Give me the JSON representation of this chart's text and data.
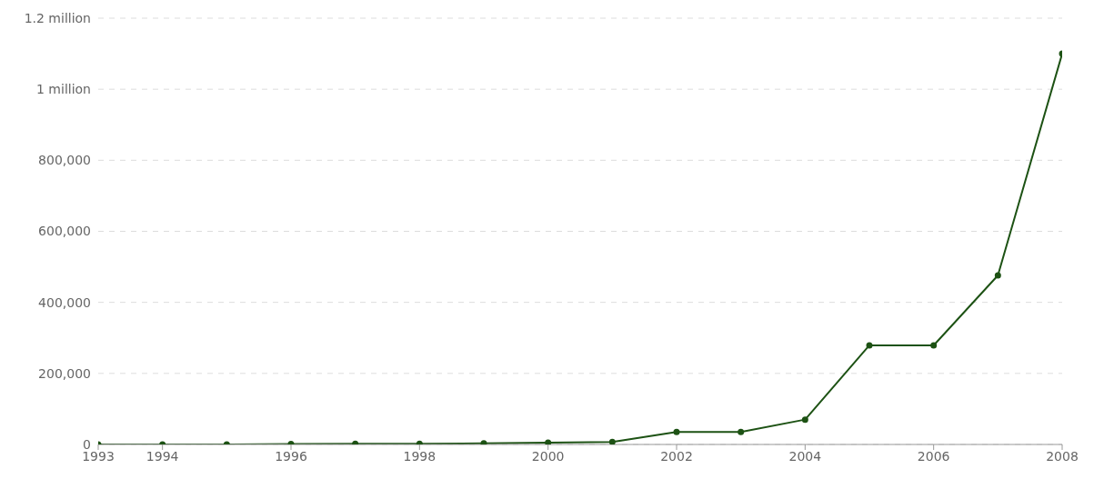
{
  "chart_data": {
    "type": "line",
    "x": [
      1993,
      1994,
      1995,
      1996,
      1997,
      1998,
      1999,
      2000,
      2001,
      2002,
      2003,
      2004,
      2005,
      2006,
      2007,
      2008
    ],
    "series": [
      {
        "color": "#1d5214",
        "values": [
          0,
          0,
          0,
          1000,
          2000,
          2000,
          3000,
          5000,
          7000,
          35000,
          35000,
          70000,
          279000,
          279000,
          476000,
          1100000
        ]
      }
    ],
    "xlim": [
      1993,
      2008
    ],
    "xticks": [
      1993,
      1994,
      1996,
      1998,
      2000,
      2002,
      2004,
      2006,
      2008
    ],
    "ylim": [
      0,
      1200000
    ],
    "yticks": [
      0,
      {
        "value": 200000,
        "label": "200,000"
      },
      {
        "value": 400000,
        "label": "400,000"
      },
      {
        "value": 600000,
        "label": "600,000"
      },
      {
        "value": 800000,
        "label": "800,000"
      },
      {
        "value": 1000000,
        "label": "1 million"
      },
      {
        "value": 1200000,
        "label": "1.2 million"
      }
    ],
    "grid": "y",
    "marker": "circle",
    "line_style": "solid"
  }
}
